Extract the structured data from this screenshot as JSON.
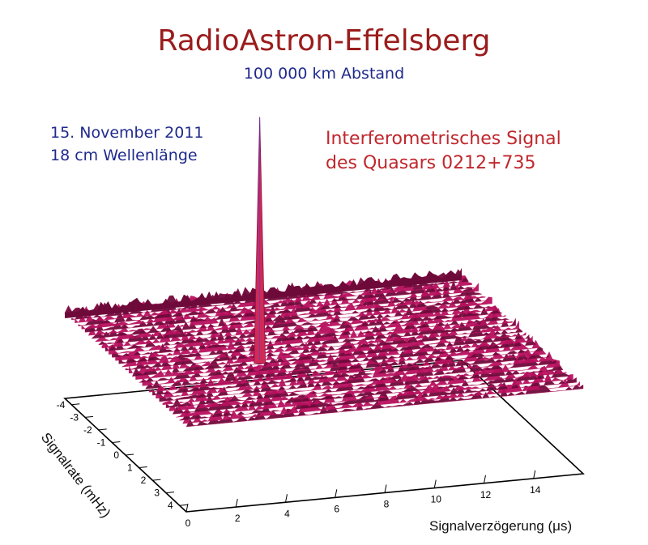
{
  "header": {
    "title": "RadioAstron-Effelsberg",
    "subtitle": "100 000 km Abstand"
  },
  "observation": {
    "date": "15. November 2011",
    "wavelength": "18 cm Wellenlänge"
  },
  "annotation": {
    "line1": "Interferometrisches Signal",
    "line2": "des Quasars 0212+735"
  },
  "colors": {
    "title": "#9b1c1c",
    "info": "#1f2a8c",
    "annotation": "#c0272d",
    "surface": "#b8105e",
    "surface_dark": "#6e0a3a",
    "peak": "#d02a55"
  },
  "chart_data": {
    "type": "surface3d",
    "xlabel": "Signalverzögerung (μs)",
    "ylabel": "Signalrate (mHz)",
    "x_ticks": [
      0,
      2,
      4,
      6,
      8,
      10,
      12,
      14
    ],
    "y_ticks": [
      -4,
      -3,
      -2,
      -1,
      0,
      1,
      2,
      3,
      4
    ],
    "xlim": [
      0,
      16
    ],
    "ylim": [
      -4.5,
      4.5
    ],
    "peak": {
      "delay_us": 5.3,
      "rate_mHz": 0.2,
      "relative_amplitude": 1.0
    },
    "noise_relative_amplitude": 0.08
  }
}
